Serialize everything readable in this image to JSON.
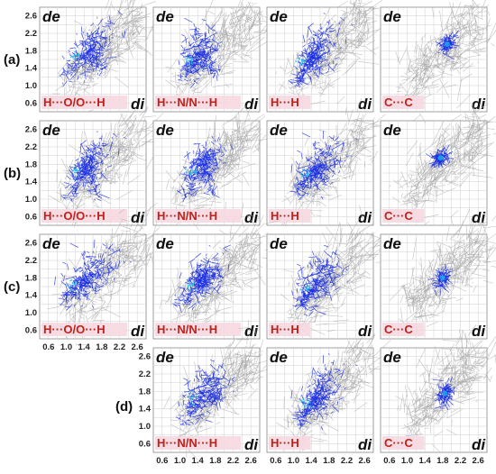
{
  "chart_data": {
    "type": "scatter",
    "title": "",
    "xlabel": "di",
    "ylabel": "de",
    "xlim": [
      0.4,
      2.8
    ],
    "ylim": [
      0.4,
      2.8
    ],
    "x_ticks": [
      "0.6",
      "1.0",
      "1.4",
      "1.8",
      "2.2",
      "2.6"
    ],
    "y_ticks": [
      "0.6",
      "1.0",
      "1.4",
      "1.8",
      "2.2",
      "2.6"
    ],
    "grid": true,
    "rows": [
      {
        "label": "(a)",
        "panels": [
          {
            "contact": "H···O/O···H",
            "shape": "wings",
            "center": [
              1.55,
              1.85
            ],
            "spread": [
              0.45,
              0.5
            ],
            "tips": [
              [
                0.95,
                1.25
              ],
              [
                1.8,
                1.3
              ]
            ]
          },
          {
            "contact": "H···N/N···H",
            "shape": "wings",
            "center": [
              1.45,
              1.75
            ],
            "spread": [
              0.3,
              0.45
            ],
            "tips": [
              [
                1.0,
                1.15
              ],
              [
                1.85,
                1.25
              ]
            ]
          },
          {
            "contact": "H···H",
            "shape": "spike",
            "center": [
              1.5,
              1.75
            ],
            "spread": [
              0.4,
              0.5
            ],
            "tips": [
              [
                1.05,
                1.05
              ]
            ]
          },
          {
            "contact": "C···C",
            "shape": "blob",
            "center": [
              1.9,
              1.95
            ],
            "spread": [
              0.12,
              0.12
            ],
            "tips": []
          }
        ]
      },
      {
        "label": "(b)",
        "panels": [
          {
            "contact": "H···O/O···H",
            "shape": "wings",
            "center": [
              1.5,
              1.8
            ],
            "spread": [
              0.4,
              0.4
            ],
            "tips": [
              [
                1.05,
                1.0
              ],
              [
                1.7,
                1.05
              ]
            ]
          },
          {
            "contact": "H···N/N···H",
            "shape": "wings",
            "center": [
              1.55,
              1.8
            ],
            "spread": [
              0.35,
              0.4
            ],
            "tips": [
              [
                1.05,
                1.05
              ],
              [
                1.75,
                1.1
              ]
            ]
          },
          {
            "contact": "H···H",
            "shape": "spike",
            "center": [
              1.6,
              1.75
            ],
            "spread": [
              0.4,
              0.45
            ],
            "tips": [
              [
                1.05,
                1.15
              ]
            ]
          },
          {
            "contact": "C···C",
            "shape": "blob",
            "center": [
              1.75,
              1.95
            ],
            "spread": [
              0.15,
              0.12
            ],
            "tips": []
          }
        ]
      },
      {
        "label": "(c)",
        "panels": [
          {
            "contact": "H···O/O···H",
            "shape": "wings",
            "center": [
              1.55,
              1.85
            ],
            "spread": [
              0.5,
              0.45
            ],
            "tips": [
              [
                0.95,
                1.3
              ]
            ]
          },
          {
            "contact": "H···N/N···H",
            "shape": "wings",
            "center": [
              1.5,
              1.8
            ],
            "spread": [
              0.35,
              0.4
            ],
            "tips": [
              [
                1.0,
                1.15
              ],
              [
                1.9,
                1.9
              ]
            ]
          },
          {
            "contact": "H···H",
            "shape": "spike",
            "center": [
              1.6,
              1.75
            ],
            "spread": [
              0.4,
              0.45
            ],
            "tips": [
              [
                1.15,
                1.2
              ]
            ]
          },
          {
            "contact": "C···C",
            "shape": "blob",
            "center": [
              1.8,
              1.8
            ],
            "spread": [
              0.14,
              0.18
            ],
            "tips": []
          }
        ]
      },
      {
        "label": "(d)",
        "panels": [
          {
            "contact": "H···N/N···H",
            "shape": "wings",
            "center": [
              1.6,
              1.8
            ],
            "spread": [
              0.4,
              0.4
            ],
            "tips": [
              [
                1.05,
                1.05
              ],
              [
                1.9,
                1.6
              ]
            ]
          },
          {
            "contact": "H···H",
            "shape": "spike",
            "center": [
              1.6,
              1.75
            ],
            "spread": [
              0.4,
              0.5
            ],
            "tips": [
              [
                1.1,
                1.1
              ]
            ]
          },
          {
            "contact": "C···C",
            "shape": "blob",
            "center": [
              1.85,
              1.75
            ],
            "spread": [
              0.15,
              0.22
            ],
            "tips": []
          }
        ]
      }
    ]
  },
  "colors": {
    "points": "#1a2ee6",
    "highlight": "#19c3e6",
    "fingerprint": "#a8a8a8",
    "grid": "#cfcfcf",
    "panel_border": "#888888",
    "contact_label_bg": "#f6d9e0",
    "contact_label_text": "#c0201a"
  }
}
